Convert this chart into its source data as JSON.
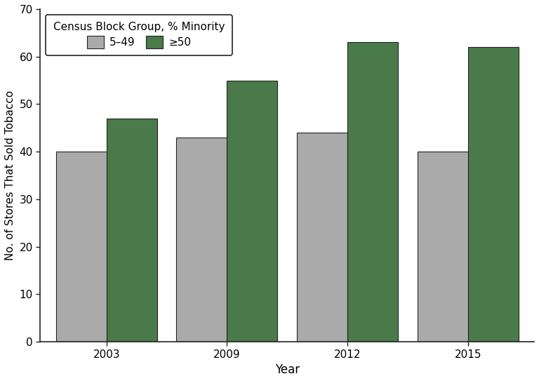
{
  "years": [
    "2003",
    "2009",
    "2012",
    "2015"
  ],
  "values_minority_5_49": [
    40,
    43,
    44,
    40
  ],
  "values_minority_ge50": [
    47,
    55,
    63,
    62
  ],
  "color_5_49": "#aaaaaa",
  "color_ge50": "#4a7a4a",
  "bar_edge_color": "#222222",
  "bar_width": 0.42,
  "ylabel": "No. of Stores That Sold Tobacco",
  "xlabel": "Year",
  "ylim": [
    0,
    70
  ],
  "yticks": [
    0,
    10,
    20,
    30,
    40,
    50,
    60,
    70
  ],
  "legend_title": "Census Block Group, % Minority",
  "legend_label_5_49": "5–49",
  "legend_label_ge50": "≥50",
  "background_color": "#ffffff",
  "figsize": [
    7.68,
    5.43
  ],
  "dpi": 100
}
